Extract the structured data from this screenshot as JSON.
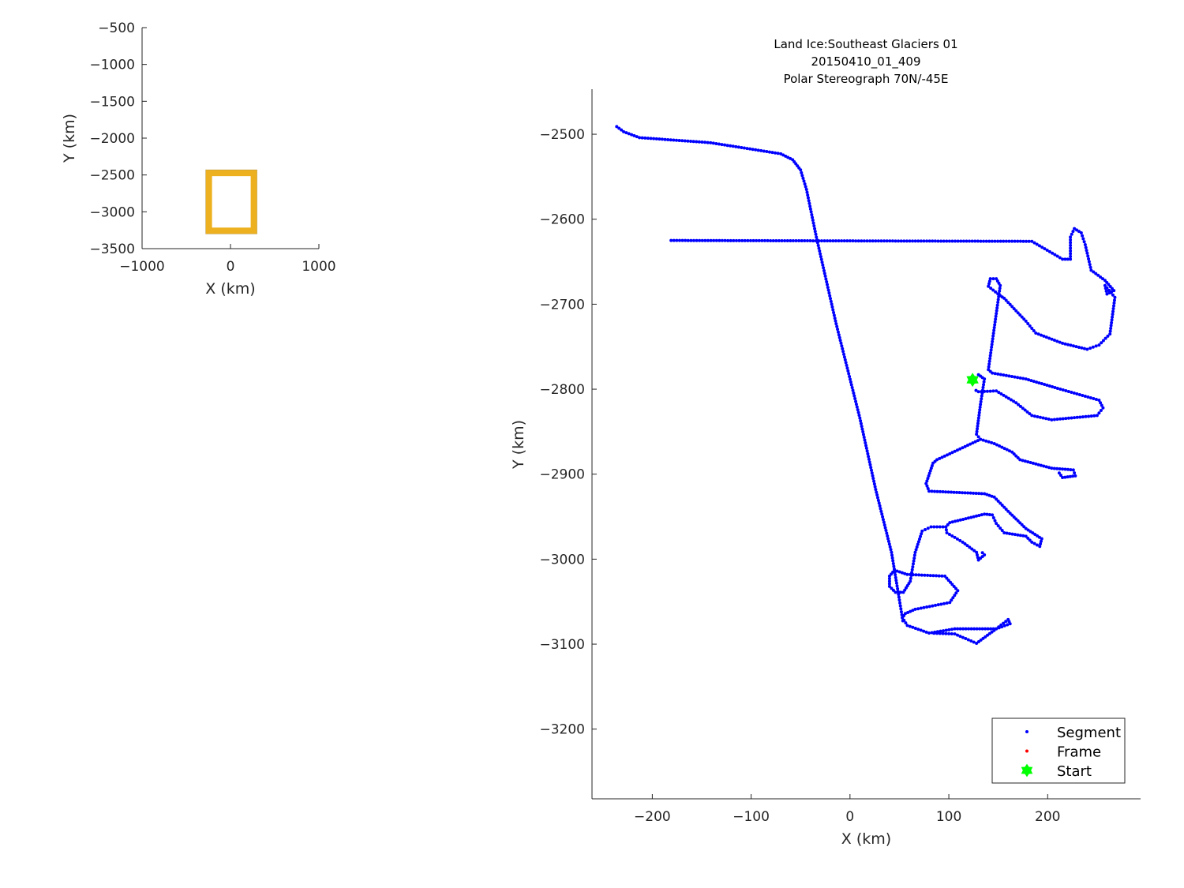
{
  "chart_data": [
    {
      "type": "scatter",
      "title": "",
      "xlabel": "X (km)",
      "ylabel": "Y (km)",
      "xlim": [
        -1000,
        1000
      ],
      "ylim": [
        -3500,
        -500
      ],
      "xticks": [
        -1000,
        0,
        1000
      ],
      "yticks": [
        -500,
        -1000,
        -1500,
        -2000,
        -2500,
        -3000,
        -3500
      ],
      "grid": false,
      "boundary_box": {
        "x": [
          -280,
          300
        ],
        "y": [
          -3300,
          -2430
        ],
        "color": "#EDB120"
      }
    },
    {
      "type": "scatter",
      "title_lines": [
        "Land Ice:Southeast Glaciers 01",
        "20150410_01_409",
        "Polar Stereograph 70N/-45E"
      ],
      "xlabel": "X (km)",
      "ylabel": "Y (km)",
      "xlim": [
        -261,
        294
      ],
      "ylim": [
        -3282,
        -2447
      ],
      "xticks": [
        -200,
        -100,
        0,
        100,
        200
      ],
      "yticks": [
        -2500,
        -2600,
        -2700,
        -2800,
        -2900,
        -3000,
        -3100,
        -3200
      ],
      "grid": false,
      "legend": {
        "placement": "bottom-right",
        "entries": [
          {
            "name": "Segment",
            "color": "#0000FF",
            "marker": "dot"
          },
          {
            "name": "Frame",
            "color": "#FF0000",
            "marker": "dot"
          },
          {
            "name": "Start",
            "color": "#00FF00",
            "marker": "hexagram"
          }
        ]
      },
      "start": [
        124,
        -2789
      ],
      "segment_paths": [
        [
          [
            -236,
            -2491
          ],
          [
            -229,
            -2497
          ],
          [
            -213,
            -2504
          ],
          [
            -141,
            -2510
          ],
          [
            -70,
            -2523
          ],
          [
            -58,
            -2530
          ],
          [
            -50,
            -2542
          ],
          [
            -44,
            -2565
          ],
          [
            -34,
            -2621
          ],
          [
            -14,
            -2723
          ],
          [
            10,
            -2834
          ],
          [
            26,
            -2918
          ],
          [
            42,
            -2992
          ],
          [
            50,
            -3048
          ],
          [
            54,
            -3076
          ]
        ],
        [
          [
            -181,
            -2625
          ],
          [
            184,
            -2626
          ],
          [
            215,
            -2647
          ],
          [
            223,
            -2647
          ],
          [
            223,
            -2621
          ],
          [
            227,
            -2611
          ],
          [
            234,
            -2616
          ],
          [
            238,
            -2630
          ],
          [
            244,
            -2660
          ],
          [
            258,
            -2672
          ],
          [
            267,
            -2684
          ],
          [
            260,
            -2688
          ],
          [
            258,
            -2678
          ],
          [
            268,
            -2692
          ],
          [
            263,
            -2735
          ],
          [
            252,
            -2748
          ],
          [
            240,
            -2753
          ],
          [
            215,
            -2746
          ],
          [
            188,
            -2734
          ],
          [
            178,
            -2720
          ],
          [
            156,
            -2693
          ],
          [
            152,
            -2690
          ],
          [
            140,
            -2679
          ],
          [
            142,
            -2670
          ],
          [
            148,
            -2670
          ],
          [
            152,
            -2678
          ],
          [
            148,
            -2711
          ],
          [
            140,
            -2777
          ],
          [
            144,
            -2781
          ],
          [
            178,
            -2788
          ],
          [
            210,
            -2799
          ],
          [
            252,
            -2813
          ],
          [
            256,
            -2822
          ],
          [
            250,
            -2831
          ],
          [
            204,
            -2836
          ],
          [
            184,
            -2831
          ],
          [
            168,
            -2816
          ],
          [
            148,
            -2802
          ],
          [
            130,
            -2803
          ],
          [
            125,
            -2800
          ]
        ],
        [
          [
            130,
            -2783
          ],
          [
            136,
            -2788
          ],
          [
            132,
            -2818
          ],
          [
            128,
            -2853
          ],
          [
            132,
            -2859
          ],
          [
            146,
            -2864
          ],
          [
            164,
            -2874
          ],
          [
            172,
            -2883
          ],
          [
            204,
            -2893
          ],
          [
            226,
            -2895
          ],
          [
            228,
            -2902
          ],
          [
            215,
            -2904
          ],
          [
            210,
            -2896
          ]
        ],
        [
          [
            132,
            -2859
          ],
          [
            88,
            -2883
          ],
          [
            84,
            -2887
          ],
          [
            77,
            -2911
          ],
          [
            80,
            -2920
          ],
          [
            136,
            -2923
          ],
          [
            146,
            -2927
          ],
          [
            162,
            -2946
          ],
          [
            178,
            -2964
          ],
          [
            194,
            -2976
          ],
          [
            192,
            -2985
          ],
          [
            184,
            -2980
          ],
          [
            178,
            -2973
          ],
          [
            156,
            -2969
          ],
          [
            148,
            -2958
          ],
          [
            144,
            -2948
          ],
          [
            136,
            -2947
          ],
          [
            101,
            -2957
          ],
          [
            97,
            -2962
          ],
          [
            82,
            -2962
          ],
          [
            73,
            -2967
          ],
          [
            66,
            -2992
          ],
          [
            61,
            -3026
          ],
          [
            54,
            -3039
          ],
          [
            46,
            -3039
          ],
          [
            40,
            -3032
          ],
          [
            40,
            -3020
          ],
          [
            45,
            -3013
          ],
          [
            58,
            -3018
          ],
          [
            96,
            -3020
          ],
          [
            109,
            -3037
          ],
          [
            101,
            -3051
          ],
          [
            66,
            -3059
          ],
          [
            56,
            -3064
          ],
          [
            53,
            -3069
          ],
          [
            58,
            -3078
          ],
          [
            80,
            -3087
          ],
          [
            106,
            -3082
          ],
          [
            148,
            -3082
          ],
          [
            162,
            -3076
          ],
          [
            160,
            -3071
          ],
          [
            148,
            -3082
          ],
          [
            128,
            -3099
          ],
          [
            106,
            -3088
          ],
          [
            82,
            -3087
          ]
        ],
        [
          [
            97,
            -2962
          ],
          [
            98,
            -2969
          ],
          [
            114,
            -2980
          ],
          [
            128,
            -2992
          ],
          [
            130,
            -3001
          ],
          [
            136,
            -2995
          ],
          [
            132,
            -2990
          ]
        ]
      ]
    }
  ]
}
